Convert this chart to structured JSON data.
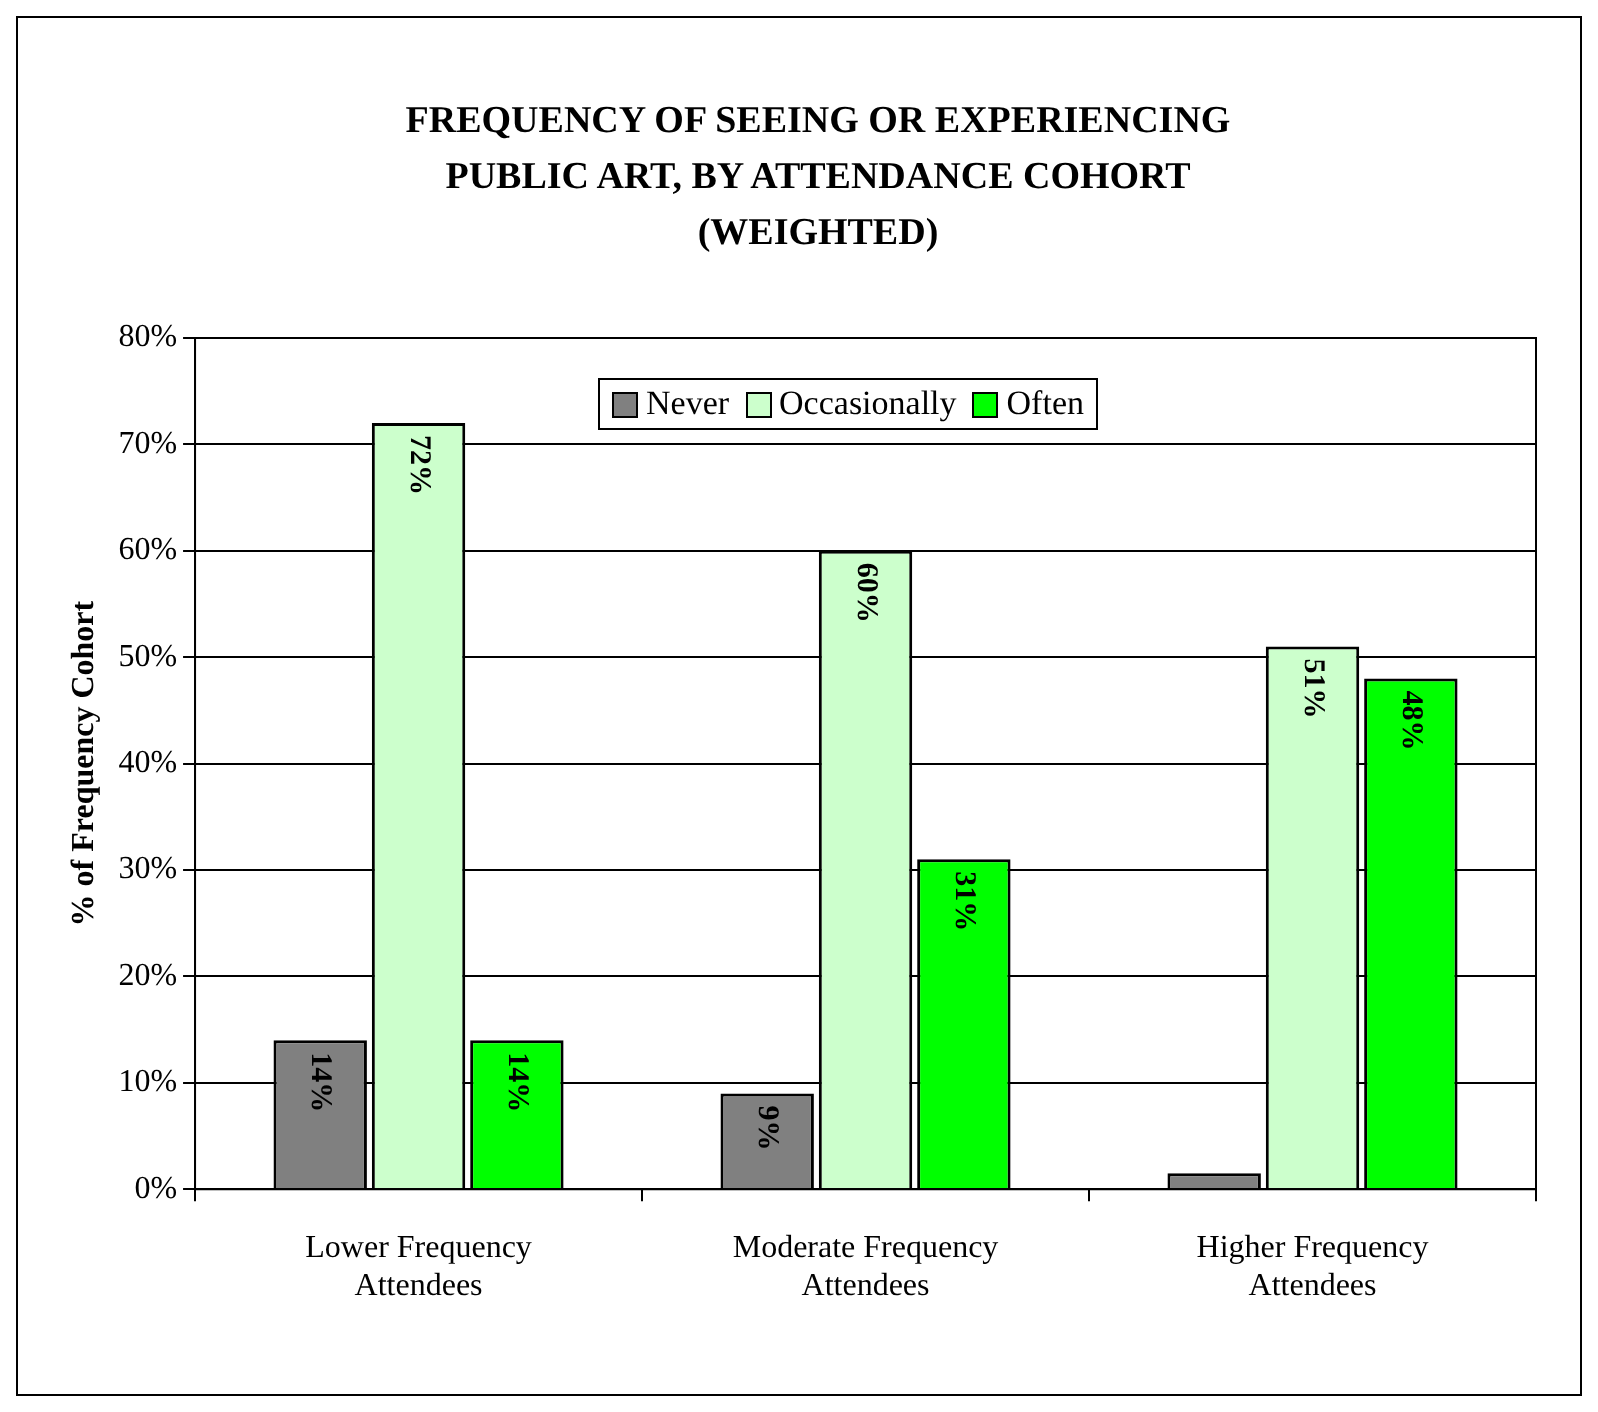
{
  "chart_data": {
    "type": "bar",
    "title": "FREQUENCY OF SEEING OR EXPERIENCING PUBLIC ART, BY ATTENDANCE COHORT (WEIGHTED)",
    "ylabel": "% of Frequency Cohort",
    "categories": [
      "Lower Frequency Attendees",
      "Moderate Frequency Attendees",
      "Higher Frequency Attendees"
    ],
    "series": [
      {
        "name": "Never",
        "color": "#808080",
        "values": [
          14,
          9,
          1.5
        ],
        "value_labels": [
          "14%",
          "9%",
          null
        ]
      },
      {
        "name": "Occasionally",
        "color": "#ccffcc",
        "values": [
          72,
          60,
          51
        ],
        "value_labels": [
          "72%",
          "60%",
          "51%"
        ]
      },
      {
        "name": "Often",
        "color": "#00ff00",
        "values": [
          14,
          31,
          48
        ],
        "value_labels": [
          "14%",
          "31%",
          "48%"
        ]
      }
    ],
    "ylim": [
      0,
      80
    ],
    "yticks": [
      {
        "value": 0,
        "label": "0%"
      },
      {
        "value": 10,
        "label": "10%"
      },
      {
        "value": 20,
        "label": "20%"
      },
      {
        "value": 30,
        "label": "30%"
      },
      {
        "value": 40,
        "label": "40%"
      },
      {
        "value": 50,
        "label": "50%"
      },
      {
        "value": 60,
        "label": "60%"
      },
      {
        "value": 70,
        "label": "70%"
      },
      {
        "value": 80,
        "label": "80%"
      }
    ],
    "grid": "y",
    "legend": "top"
  }
}
